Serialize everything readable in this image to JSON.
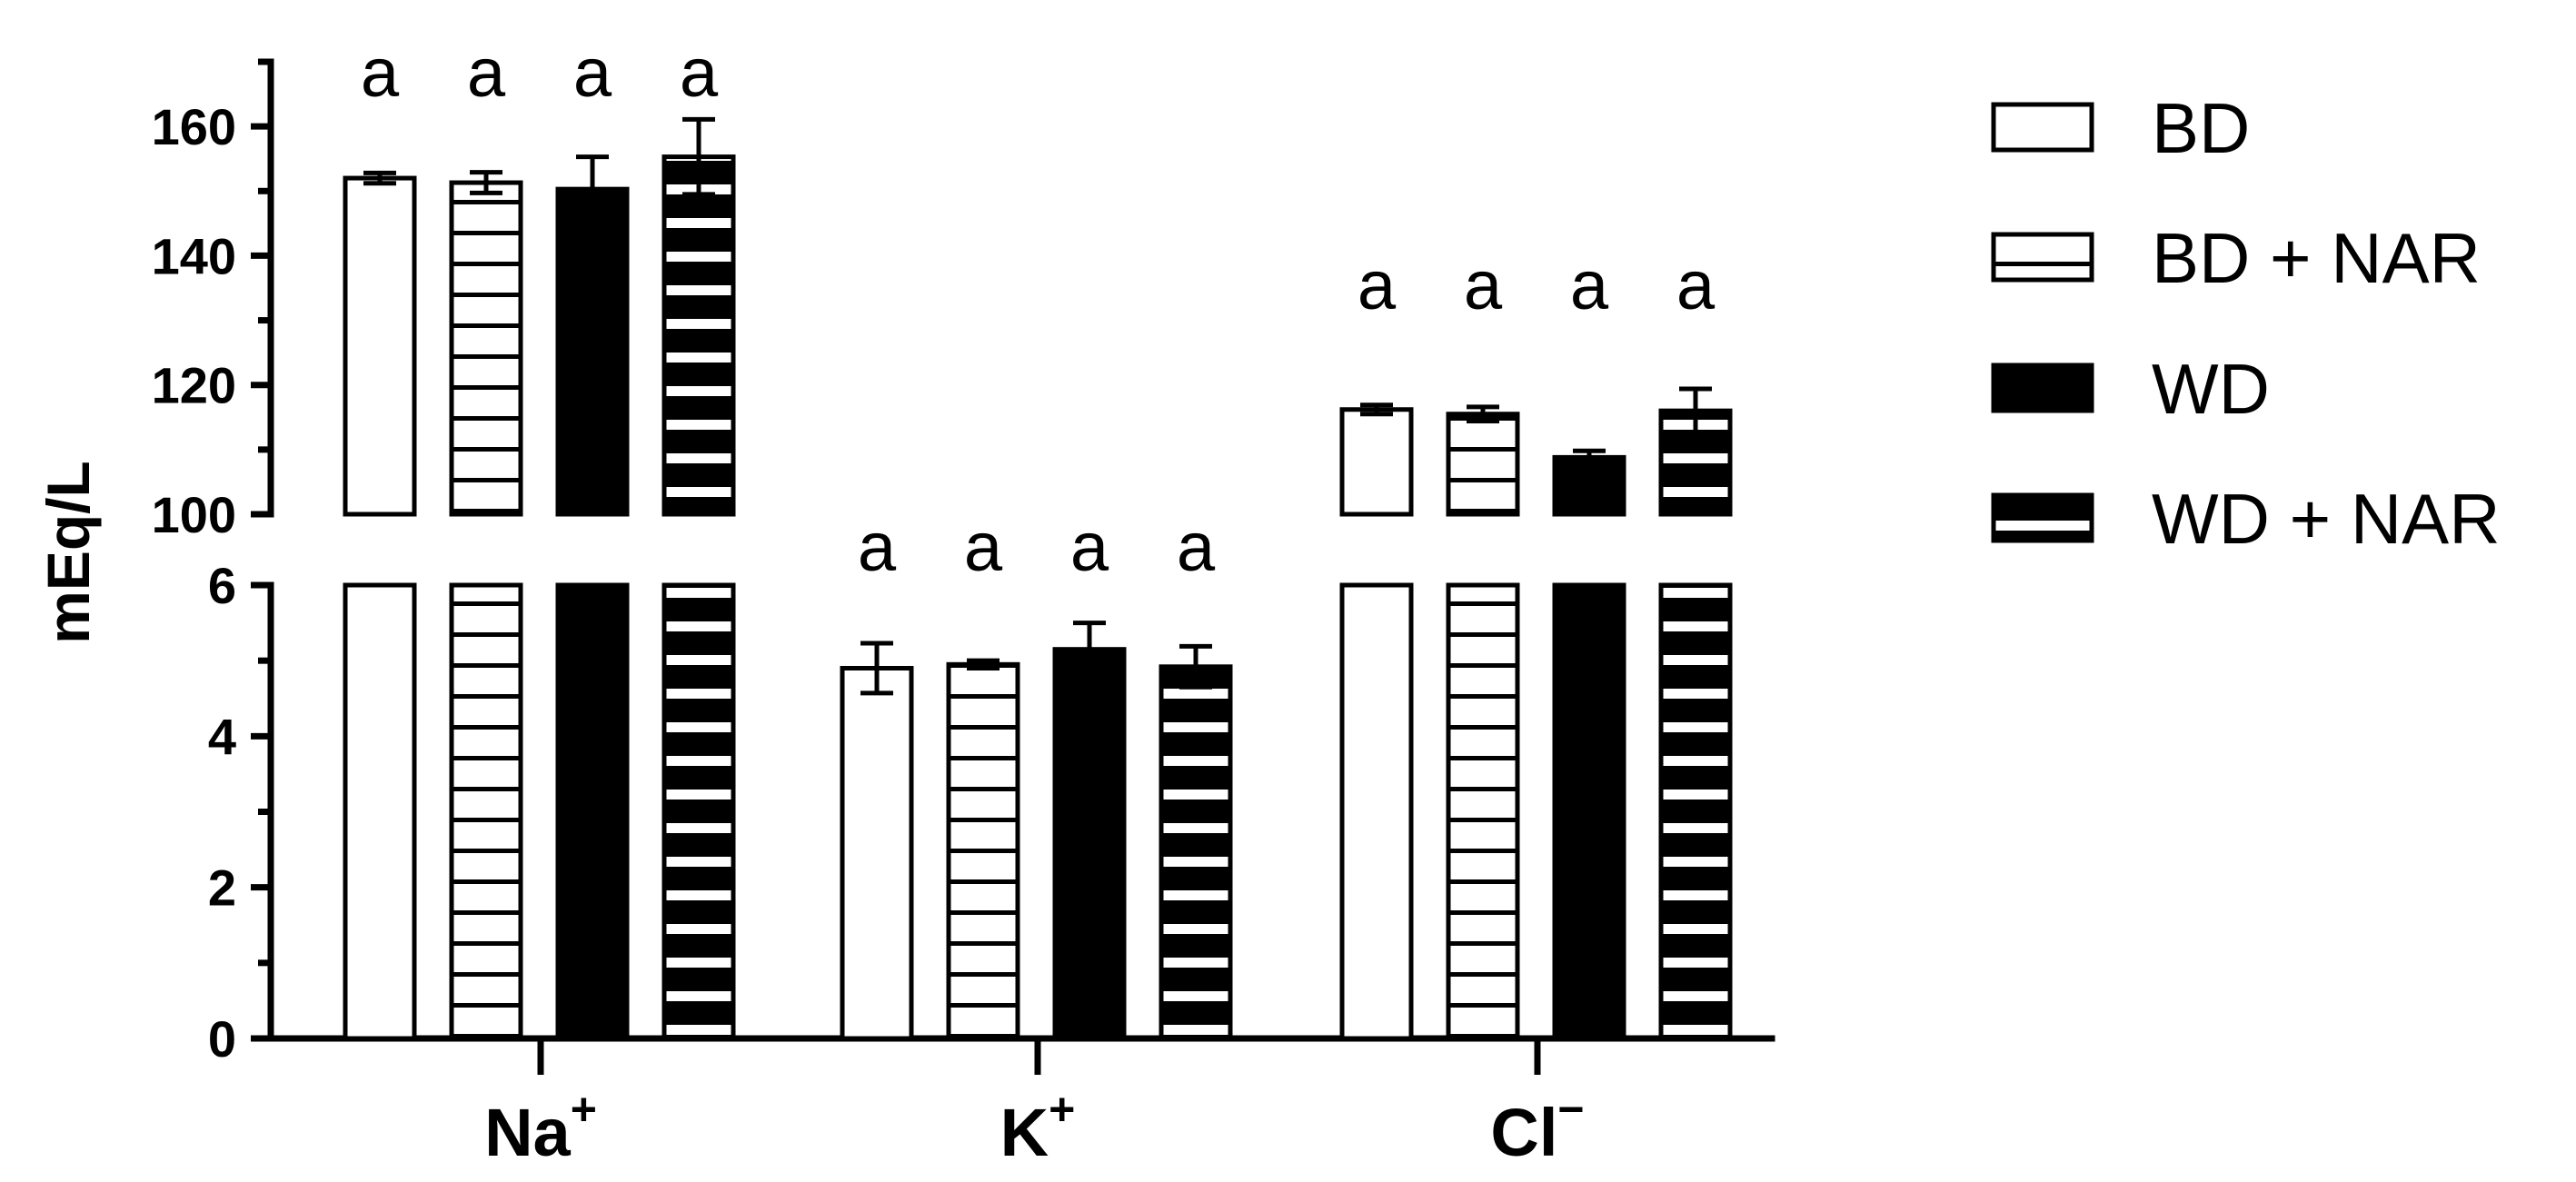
{
  "chart_data": {
    "type": "bar",
    "ylabel": "mEq/L",
    "categories": [
      {
        "base": "Na",
        "sup": "+"
      },
      {
        "base": "K",
        "sup": "+"
      },
      {
        "base": "Cl",
        "sup": "−"
      }
    ],
    "y_axis_segments": [
      {
        "range": [
          100,
          170
        ],
        "ticks": [
          100,
          120,
          140,
          160
        ],
        "minor_step": 10
      },
      {
        "range": [
          0,
          6
        ],
        "ticks": [
          0,
          2,
          4,
          6
        ],
        "minor_step": 1
      }
    ],
    "series": [
      {
        "name": "BD",
        "pattern": "open",
        "values": [
          152,
          4.9,
          116.2
        ],
        "errors": [
          0.8,
          0.33,
          0.7
        ]
      },
      {
        "name": "BD + NAR",
        "pattern": "thin-stripes",
        "values": [
          151.3,
          4.95,
          115.5
        ],
        "errors": [
          1.6,
          0.05,
          1.1
        ]
      },
      {
        "name": "WD",
        "pattern": "solid",
        "values": [
          150.3,
          5.15,
          108.8
        ],
        "errors": [
          5.0,
          0.35,
          1.0
        ]
      },
      {
        "name": "WD + NAR",
        "pattern": "thick-stripes",
        "values": [
          155.3,
          4.92,
          116.0
        ],
        "errors": [
          5.8,
          0.27,
          3.4
        ]
      }
    ],
    "significance_letters": [
      [
        "a",
        "a",
        "a",
        "a"
      ],
      [
        "a",
        "a",
        "a",
        "a"
      ],
      [
        "a",
        "a",
        "a",
        "a"
      ]
    ],
    "legend_position": "right",
    "grid": false
  }
}
